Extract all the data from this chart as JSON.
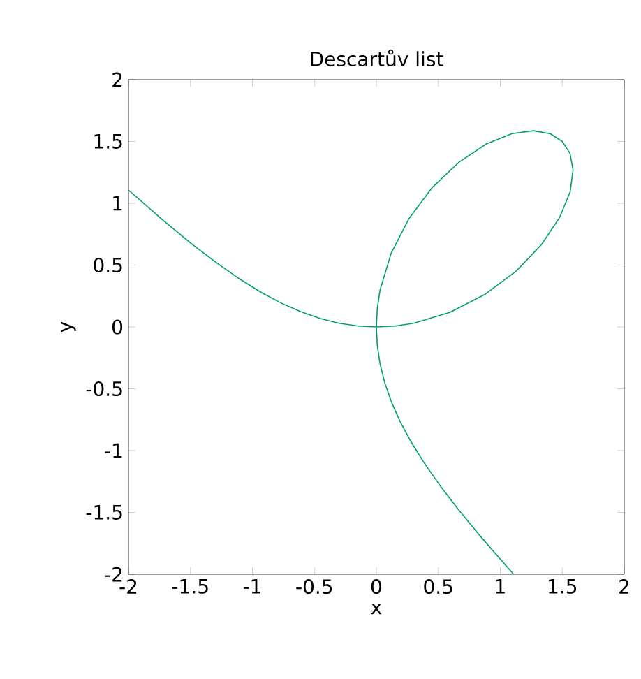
{
  "chart_data": {
    "type": "line",
    "title": "Descartův list",
    "xlabel": "x",
    "ylabel": "y",
    "xlim": [
      -2,
      2
    ],
    "ylim": [
      -2,
      2
    ],
    "xticks": [
      -2,
      -1.5,
      -1,
      -0.5,
      0,
      0.5,
      1,
      1.5,
      2
    ],
    "yticks": [
      -2,
      -1.5,
      -1,
      -0.5,
      0,
      0.5,
      1,
      1.5,
      2
    ],
    "series": [
      {
        "color": "#009e73",
        "x": [
          -2,
          -1.714,
          -1.485,
          -1.282,
          -1.097,
          -0.925,
          -0.762,
          -0.605,
          -0.4515,
          -0.3003,
          -0.15,
          0,
          0.15,
          0.2997,
          0.595,
          0.876,
          1.128,
          1.333,
          1.48,
          1.564,
          1.587,
          1.562,
          1.5,
          1.405,
          1.27,
          1.095,
          0.888,
          0.667,
          0.451,
          0.263,
          0.119,
          0.03,
          0.0075,
          0,
          0.0075,
          0.03,
          0.0677,
          0.121,
          0.19,
          0.277,
          0.384,
          0.513,
          0.668,
          0.857,
          1.107
        ],
        "values": [
          1.107,
          0.857,
          0.668,
          0.513,
          0.384,
          0.277,
          0.19,
          0.121,
          0.0677,
          0.03,
          0.0075,
          0,
          0.0075,
          0.03,
          0.119,
          0.263,
          0.451,
          0.667,
          0.888,
          1.095,
          1.27,
          1.405,
          1.5,
          1.562,
          1.587,
          1.564,
          1.48,
          1.333,
          1.128,
          0.876,
          0.595,
          0.2997,
          0.15,
          0,
          -0.15,
          -0.3003,
          -0.4515,
          -0.605,
          -0.762,
          -0.925,
          -1.097,
          -1.282,
          -1.485,
          -1.714,
          -2
        ]
      }
    ]
  }
}
